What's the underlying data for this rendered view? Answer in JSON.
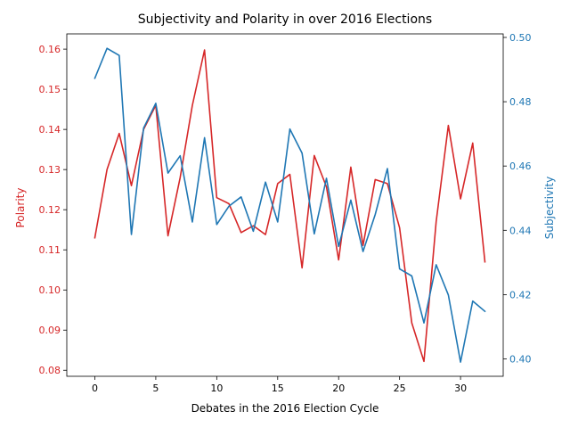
{
  "chart_data": {
    "type": "line",
    "title": "Subjectivity and Polarity in over 2016 Elections",
    "xlabel": "Debates in the 2016 Election Cycle",
    "xlim": [
      -2.3,
      33.5
    ],
    "xticks": [
      0,
      5,
      10,
      15,
      20,
      25,
      30
    ],
    "grid": false,
    "legend": "none",
    "x": [
      0,
      1,
      2,
      3,
      4,
      5,
      6,
      7,
      8,
      9,
      10,
      11,
      12,
      13,
      14,
      15,
      16,
      17,
      18,
      19,
      20,
      21,
      22,
      23,
      24,
      25,
      26,
      27,
      28,
      29,
      30,
      31,
      32
    ],
    "series": [
      {
        "name": "Polarity",
        "axis": "left",
        "color": "#d62728",
        "ylabel": "Polarity",
        "ylim": [
          0.0785,
          0.1638
        ],
        "yticks": [
          0.08,
          0.09,
          0.1,
          0.11,
          0.12,
          0.13,
          0.14,
          0.15,
          0.16
        ],
        "ytick_labels": [
          "0.08",
          "0.09",
          "0.10",
          "0.11",
          "0.12",
          "0.13",
          "0.14",
          "0.15",
          "0.16"
        ],
        "values": [
          0.113,
          0.13,
          0.139,
          0.126,
          0.14,
          0.146,
          0.1135,
          0.128,
          0.146,
          0.1598,
          0.123,
          0.1215,
          0.1143,
          0.116,
          0.1138,
          0.1265,
          0.1288,
          0.1055,
          0.1335,
          0.1257,
          0.1075,
          0.1306,
          0.1111,
          0.1275,
          0.1265,
          0.1155,
          0.0918,
          0.0822,
          0.117,
          0.141,
          0.1227,
          0.1366,
          0.107
        ]
      },
      {
        "name": "Subjectivity",
        "axis": "right",
        "color": "#1f77b4",
        "ylabel": "Subjectivity",
        "ylim": [
          0.3946,
          0.5011
        ],
        "yticks": [
          0.4,
          0.42,
          0.44,
          0.46,
          0.48,
          0.5
        ],
        "ytick_labels": [
          "0.40",
          "0.42",
          "0.44",
          "0.46",
          "0.48",
          "0.50"
        ],
        "values": [
          0.4873,
          0.4966,
          0.4944,
          0.4387,
          0.4718,
          0.4795,
          0.4578,
          0.4632,
          0.4426,
          0.4688,
          0.4418,
          0.4475,
          0.4504,
          0.4397,
          0.455,
          0.4426,
          0.4715,
          0.464,
          0.4389,
          0.4562,
          0.435,
          0.4494,
          0.4334,
          0.4449,
          0.4592,
          0.428,
          0.4258,
          0.4112,
          0.4293,
          0.4199,
          0.399,
          0.418,
          0.4148
        ]
      }
    ]
  }
}
